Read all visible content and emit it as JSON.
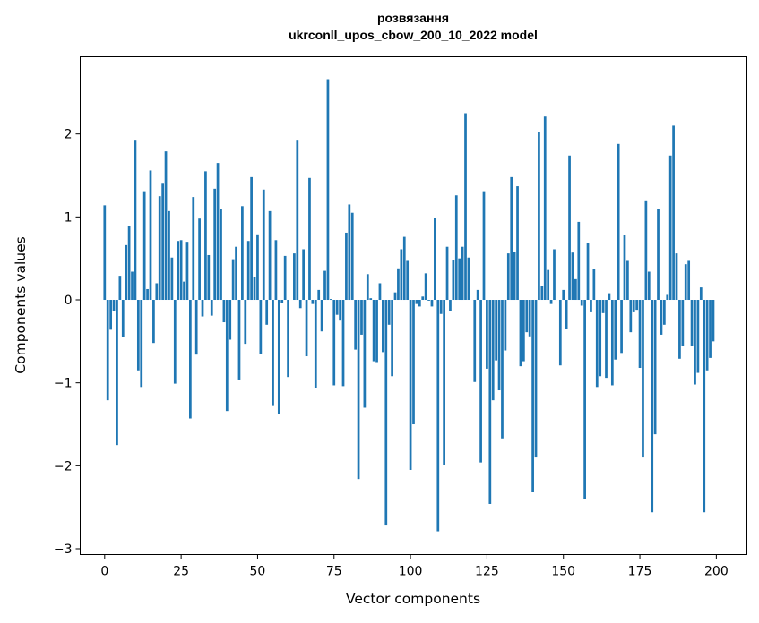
{
  "chart_data": {
    "type": "bar",
    "title": "розвязання\nukrconll_upos_cbow_200_10_2022 model",
    "xlabel": "Vector components",
    "ylabel": "Components values",
    "xlim": [
      -8,
      210
    ],
    "ylim": [
      -3.07,
      2.93
    ],
    "xticks": [
      0,
      25,
      50,
      75,
      100,
      125,
      150,
      175,
      200
    ],
    "yticks": [
      -3,
      -2,
      -1,
      0,
      1,
      2
    ],
    "bar_color": "#1f77b4",
    "grid": false,
    "values": [
      1.14,
      -1.21,
      -0.36,
      -0.14,
      -1.75,
      0.29,
      -0.45,
      0.66,
      0.89,
      0.34,
      1.93,
      -0.85,
      -1.05,
      1.31,
      0.13,
      1.56,
      -0.52,
      0.2,
      1.25,
      1.4,
      1.79,
      1.07,
      0.51,
      -1.01,
      0.71,
      0.72,
      0.22,
      0.7,
      -1.43,
      1.24,
      -0.66,
      0.98,
      -0.2,
      1.55,
      0.54,
      -0.19,
      1.34,
      1.65,
      1.09,
      -0.27,
      -1.34,
      -0.48,
      0.49,
      0.64,
      -0.96,
      1.13,
      -0.53,
      0.71,
      1.48,
      0.28,
      0.79,
      -0.65,
      1.33,
      -0.3,
      1.07,
      -1.28,
      0.72,
      -1.38,
      -0.04,
      0.53,
      -0.93,
      0.0,
      0.56,
      1.93,
      -0.1,
      0.61,
      -0.68,
      1.47,
      -0.05,
      -1.06,
      0.12,
      -0.38,
      0.35,
      2.66,
      0.01,
      -1.03,
      -0.18,
      -0.25,
      -1.04,
      0.81,
      1.15,
      1.05,
      -0.6,
      -2.16,
      -0.42,
      -1.3,
      0.31,
      0.02,
      -0.74,
      -0.75,
      0.2,
      -0.63,
      -2.72,
      -0.3,
      -0.92,
      0.09,
      0.38,
      0.61,
      0.76,
      0.47,
      -2.05,
      -1.5,
      -0.05,
      -0.08,
      0.04,
      0.32,
      -0.01,
      -0.08,
      0.99,
      -2.79,
      -0.17,
      -1.99,
      0.64,
      -0.13,
      0.48,
      1.26,
      0.5,
      0.64,
      2.25,
      0.51,
      0.0,
      -0.99,
      0.12,
      -1.96,
      1.31,
      -0.83,
      -2.46,
      -1.21,
      -0.73,
      -1.09,
      -1.67,
      -0.61,
      0.56,
      1.48,
      0.58,
      1.37,
      -0.8,
      -0.74,
      -0.39,
      -0.44,
      -2.32,
      -1.9,
      2.02,
      0.17,
      2.21,
      0.36,
      -0.05,
      0.61,
      0.0,
      -0.79,
      0.12,
      -0.35,
      1.74,
      0.57,
      0.25,
      0.94,
      -0.07,
      -2.4,
      0.68,
      -0.15,
      0.37,
      -1.05,
      -0.92,
      -0.16,
      -0.94,
      0.08,
      -1.03,
      -0.72,
      1.88,
      -0.64,
      0.78,
      0.47,
      -0.39,
      -0.15,
      -0.12,
      -0.82,
      -1.9,
      1.2,
      0.34,
      -2.56,
      -1.62,
      1.1,
      -0.42,
      -0.3,
      0.06,
      1.74,
      2.1,
      0.56,
      -0.71,
      -0.55,
      0.43,
      0.47,
      -0.55,
      -1.02,
      -0.88,
      0.15,
      -2.56,
      -0.85,
      -0.7,
      -0.5
    ]
  }
}
